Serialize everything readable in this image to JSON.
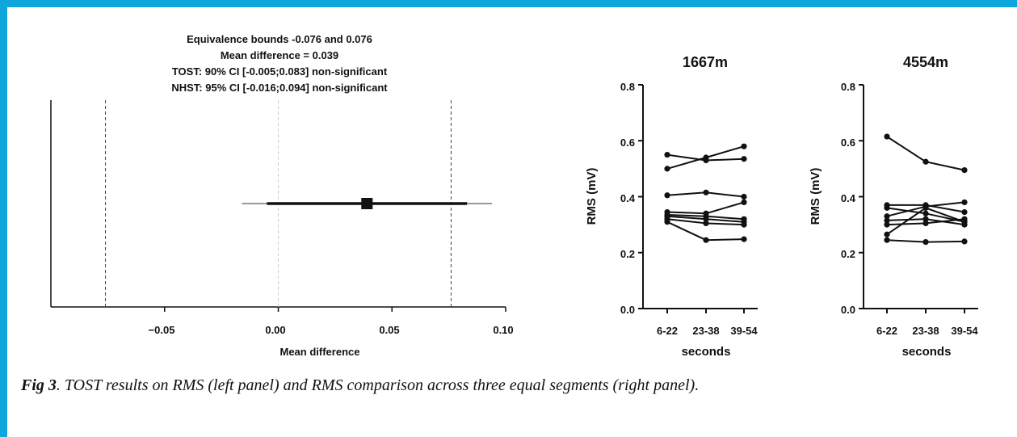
{
  "colors": {
    "frame": "#0fa6dc",
    "ink": "#111111",
    "light_line": "#cccccc"
  },
  "tost_panel": {
    "title_lines": [
      "Equivalence bounds -0.076 and 0.076",
      "Mean difference = 0.039",
      "TOST: 90% CI [-0.005;0.083] non-significant",
      "NHST: 95% CI [-0.016;0.094] non-significant"
    ],
    "xlabel": "Mean difference",
    "tick_labels": [
      "−0.05",
      "0.00",
      "0.05",
      "0.10"
    ]
  },
  "caption": {
    "label": "Fig 3",
    "text": ". TOST results on RMS (left panel) and RMS comparison across three equal segments (right panel)."
  },
  "chart_data": [
    {
      "type": "forest",
      "xlim": [
        -0.1,
        0.1
      ],
      "xticks": [
        -0.05,
        0.0,
        0.05,
        0.1
      ],
      "xlabel": "Mean difference",
      "equivalence_bounds": [
        -0.076,
        0.076
      ],
      "mean_difference": 0.039,
      "ci90": [
        -0.005,
        0.083
      ],
      "ci95": [
        -0.016,
        0.094
      ]
    },
    {
      "type": "line",
      "title": "1667m",
      "categories": [
        "6-22",
        "23-38",
        "39-54"
      ],
      "xlabel": "seconds",
      "ylabel": "RMS (mV)",
      "ylim": [
        0.0,
        0.8
      ],
      "yticks": [
        0.0,
        0.2,
        0.4,
        0.6,
        0.8
      ],
      "ytick_labels": [
        "0.0",
        "0.2",
        "0.4",
        "0.6",
        "0.8"
      ],
      "series": [
        {
          "values": [
            0.55,
            0.53,
            0.535
          ]
        },
        {
          "values": [
            0.5,
            0.54,
            0.58
          ]
        },
        {
          "values": [
            0.405,
            0.415,
            0.4
          ]
        },
        {
          "values": [
            0.345,
            0.34,
            0.38
          ]
        },
        {
          "values": [
            0.335,
            0.33,
            0.32
          ]
        },
        {
          "values": [
            0.33,
            0.32,
            0.31
          ]
        },
        {
          "values": [
            0.32,
            0.305,
            0.3
          ]
        },
        {
          "values": [
            0.31,
            0.245,
            0.248
          ]
        }
      ]
    },
    {
      "type": "line",
      "title": "4554m",
      "categories": [
        "6-22",
        "23-38",
        "39-54"
      ],
      "xlabel": "seconds",
      "ylabel": "RMS (mV)",
      "ylim": [
        0.0,
        0.8
      ],
      "yticks": [
        0.0,
        0.2,
        0.4,
        0.6,
        0.8
      ],
      "ytick_labels": [
        "0.0",
        "0.2",
        "0.4",
        "0.6",
        "0.8"
      ],
      "series": [
        {
          "values": [
            0.615,
            0.525,
            0.495
          ]
        },
        {
          "values": [
            0.37,
            0.37,
            0.345
          ]
        },
        {
          "values": [
            0.36,
            0.34,
            0.31
          ]
        },
        {
          "values": [
            0.33,
            0.365,
            0.38
          ]
        },
        {
          "values": [
            0.315,
            0.32,
            0.3
          ]
        },
        {
          "values": [
            0.3,
            0.305,
            0.32
          ]
        },
        {
          "values": [
            0.265,
            0.36,
            0.31
          ]
        },
        {
          "values": [
            0.245,
            0.238,
            0.24
          ]
        }
      ]
    }
  ]
}
